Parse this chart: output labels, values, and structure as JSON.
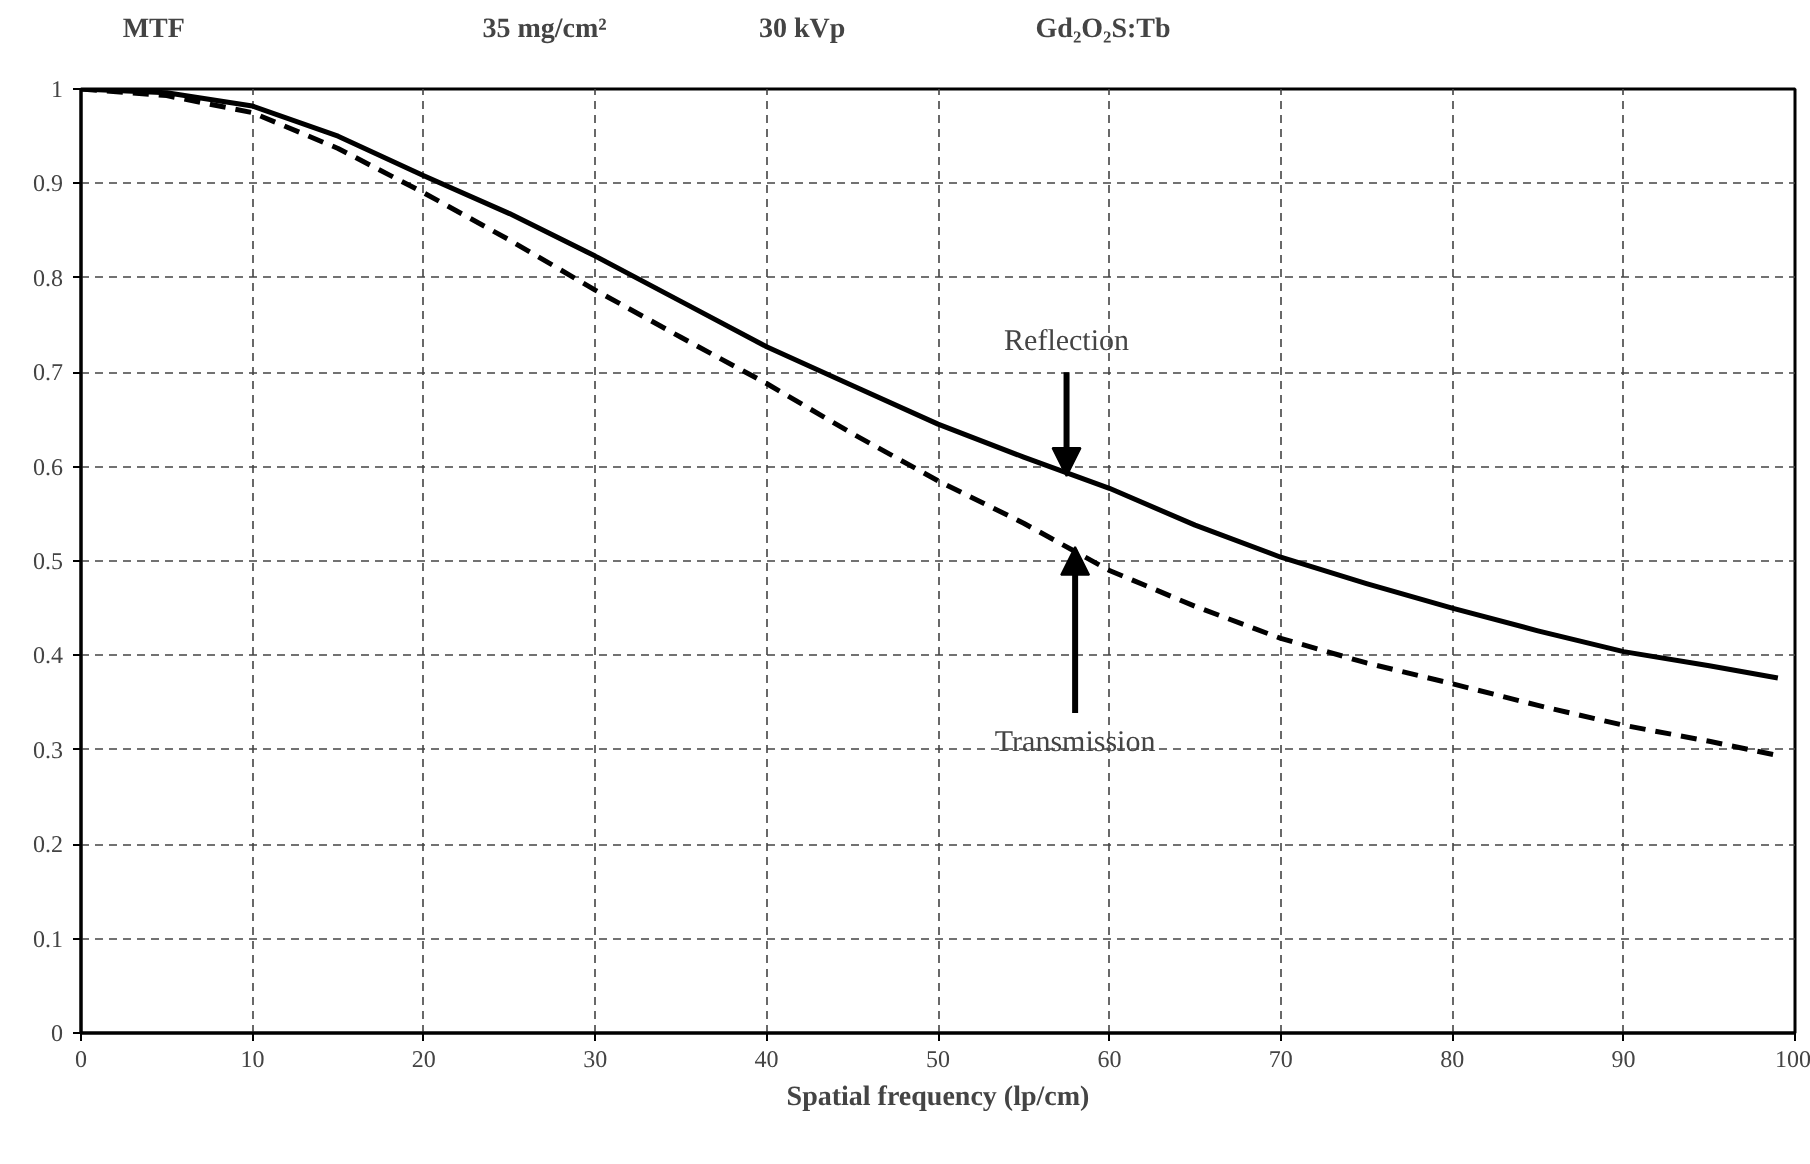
{
  "chart_data": {
    "type": "line",
    "ylabel": "MTF",
    "xlabel": "Spatial frequency (lp/cm)",
    "annotations": [
      "35 mg/cm²",
      "30 kVp",
      "Gd₂O₂S:Tb",
      {
        "text": "Reflection",
        "x": 57.5,
        "y": 0.59
      },
      {
        "text": "Transmission",
        "x": 58,
        "y": 0.515
      }
    ],
    "xlim": [
      0,
      100
    ],
    "ylim": [
      0,
      1
    ],
    "xticks": [
      0,
      10,
      20,
      30,
      40,
      50,
      60,
      70,
      80,
      90,
      100
    ],
    "yticks": [
      0,
      0.1,
      0.2,
      0.3,
      0.4,
      0.5,
      0.6,
      0.7,
      0.8,
      0.9,
      1
    ],
    "grid": true,
    "marker": "none",
    "x": [
      0,
      5,
      10,
      15,
      20,
      25,
      30,
      35,
      40,
      45,
      50,
      55,
      60,
      65,
      70,
      75,
      80,
      85,
      90,
      95,
      99
    ],
    "series": [
      {
        "color": "#000000",
        "line_style": "solid",
        "values": [
          1.0,
          0.996,
          0.982,
          0.95,
          0.908,
          0.868,
          0.823,
          0.775,
          0.727,
          0.686,
          0.645,
          0.61,
          0.577,
          0.538,
          0.504,
          0.476,
          0.45,
          0.426,
          0.404,
          0.389,
          0.376
        ]
      },
      {
        "color": "#000000",
        "line_style": "dashed",
        "values": [
          1.0,
          0.993,
          0.975,
          0.937,
          0.89,
          0.84,
          0.787,
          0.737,
          0.688,
          0.635,
          0.585,
          0.54,
          0.49,
          0.452,
          0.418,
          0.392,
          0.37,
          0.347,
          0.326,
          0.309,
          0.294
        ]
      }
    ]
  }
}
